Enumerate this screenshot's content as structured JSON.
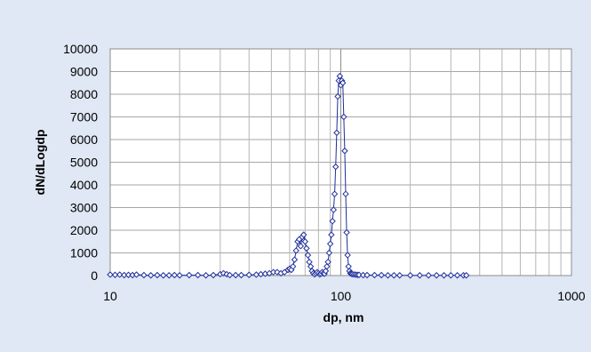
{
  "chart_data": {
    "type": "scatter",
    "title": "",
    "xlabel": "dp, nm",
    "ylabel": "dN/dLogdp",
    "x_scale": "log",
    "xlim": [
      10,
      1000
    ],
    "ylim": [
      0,
      10000
    ],
    "x_ticks": [
      "10",
      "100",
      "1000"
    ],
    "y_ticks": [
      "0",
      "1000",
      "2000",
      "3000",
      "4000",
      "5000",
      "6000",
      "7000",
      "8000",
      "9000",
      "10000"
    ],
    "grid": true,
    "legend": "none",
    "marker": "open-diamond",
    "line": "connected",
    "series_color": "#1f2f9a",
    "series": [
      {
        "x": [
          10,
          10.5,
          11,
          11.5,
          12,
          12.5,
          13,
          14,
          15,
          16,
          17,
          18,
          19,
          20,
          22,
          24,
          26,
          28,
          30,
          31,
          32,
          33,
          35,
          37,
          40,
          43,
          45,
          47,
          49,
          51,
          53,
          55,
          57,
          59,
          60,
          61,
          62,
          63,
          64,
          65,
          66,
          67,
          68,
          69,
          70,
          71,
          72,
          73,
          74,
          75,
          76,
          77,
          78,
          79,
          80,
          81,
          82,
          83,
          84,
          85,
          86,
          87,
          88,
          89,
          90,
          91,
          92,
          93,
          94,
          95,
          96,
          97,
          98,
          99,
          100,
          101,
          102,
          103,
          104,
          105,
          106,
          107,
          108,
          109,
          110,
          111,
          112,
          114,
          116,
          118,
          120,
          125,
          130,
          140,
          150,
          160,
          170,
          180,
          200,
          220,
          240,
          260,
          280,
          300,
          320,
          340,
          350
        ],
        "y": [
          40,
          30,
          40,
          20,
          30,
          20,
          40,
          20,
          10,
          20,
          10,
          10,
          20,
          10,
          20,
          20,
          10,
          20,
          60,
          100,
          60,
          20,
          20,
          20,
          30,
          40,
          60,
          80,
          100,
          150,
          150,
          100,
          150,
          250,
          300,
          250,
          400,
          700,
          1100,
          1500,
          1600,
          1300,
          1700,
          1800,
          1500,
          1200,
          900,
          600,
          400,
          200,
          100,
          50,
          100,
          150,
          100,
          50,
          80,
          150,
          100,
          80,
          200,
          400,
          600,
          1000,
          1400,
          1800,
          2400,
          2900,
          3600,
          4800,
          6300,
          7900,
          8600,
          8800,
          8400,
          8600,
          8500,
          7000,
          5500,
          3600,
          1900,
          900,
          400,
          200,
          100,
          80,
          60,
          50,
          40,
          30,
          30,
          20,
          20,
          20,
          20,
          10,
          10,
          10,
          10,
          10,
          10,
          10,
          10,
          10,
          10,
          10,
          10
        ]
      }
    ]
  }
}
